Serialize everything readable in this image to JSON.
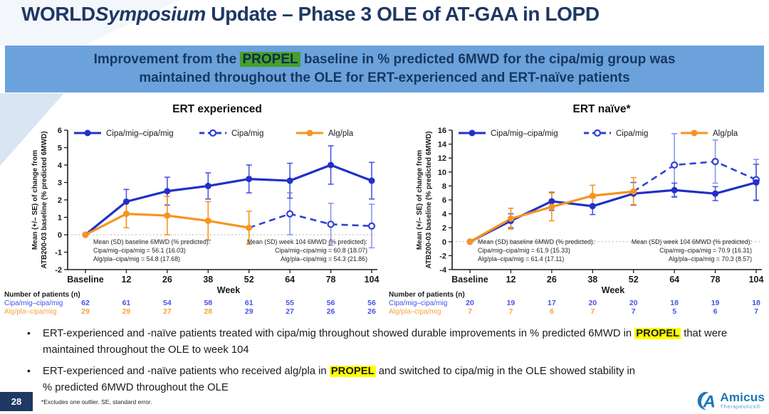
{
  "title": {
    "part_world": "WORLD",
    "part_symposium": "Symposium",
    "part_rest": " Update – Phase 3 OLE of AT-GAA in LOPD"
  },
  "banner": {
    "line1_pre": "Improvement from the ",
    "propel": "PROPEL",
    "line1_post": " baseline in % predicted 6MWD for the cipa/mig group was",
    "line2": "maintained throughout the OLE for ERT-experienced and ERT-naïve patients"
  },
  "colors": {
    "title_navy": "#1F3864",
    "banner_bg": "#6CA2DC",
    "banner_text": "#17375E",
    "propel_green": "#45A029",
    "highlight_yellow": "#FFFF00",
    "series_blue": "#2130C8",
    "series_blue_dashed": "#3141D6",
    "series_orange": "#F7941E",
    "patient_blue": "#4553E8",
    "patient_orange": "#F9A13C",
    "footer_navy": "#1F3864",
    "logo_blue": "#1B75BC"
  },
  "chart_data": [
    {
      "type": "line",
      "title": "ERT experienced",
      "xlabel": "Week",
      "ylabel_line1": "Mean (+/– SE) of change from",
      "ylabel_line2": "ATB200-03 baseline (% predicted 6MWD)",
      "x_categories": [
        "Baseline",
        "12",
        "26",
        "38",
        "52",
        "64",
        "78",
        "104"
      ],
      "ylim": [
        -2,
        6
      ],
      "ytick_step": 1,
      "legend": [
        {
          "label": "Cipa/mig–cipa/mig",
          "color": "#2130C8",
          "style": "solid",
          "marker": "filled"
        },
        {
          "label": "Cipa/mig",
          "color": "#3141D6",
          "style": "dashed",
          "marker": "open"
        },
        {
          "label": "Alg/pla",
          "color": "#F7941E",
          "style": "solid",
          "marker": "filled"
        }
      ],
      "series": [
        {
          "name": "Cipa/mig",
          "style": "dashed",
          "marker": "open",
          "color": "#3141D6",
          "error_color": "#8A95EF",
          "x_idx": [
            4,
            5,
            6,
            7
          ],
          "values": [
            0.4,
            1.2,
            0.6,
            0.5
          ],
          "se": [
            0,
            1.2,
            1.2,
            1.25
          ],
          "draw_marker": [
            false,
            true,
            true,
            true
          ]
        },
        {
          "name": "Cipa/mig–cipa/mig",
          "style": "solid",
          "marker": "filled",
          "color": "#2130C8",
          "error_color": "#4A57E0",
          "x_idx": [
            0,
            1,
            2,
            3,
            4,
            5,
            6,
            7
          ],
          "values": [
            0,
            1.9,
            2.5,
            2.8,
            3.2,
            3.1,
            4.0,
            3.1
          ],
          "se": [
            0,
            0.7,
            0.8,
            0.75,
            0.8,
            1.0,
            1.1,
            1.05
          ]
        },
        {
          "name": "Alg/pla",
          "style": "solid",
          "marker": "filled",
          "color": "#F7941E",
          "error_color": "#F7941E",
          "x_idx": [
            0,
            1,
            2,
            3,
            4
          ],
          "values": [
            0,
            1.2,
            1.1,
            0.8,
            0.4
          ],
          "se": [
            0,
            0.8,
            1.1,
            1.1,
            0.95
          ]
        }
      ],
      "annotations": {
        "left": [
          "Mean (SD) baseline 6MWD (% predicted):",
          "Cipa/mig–cipa/mig = 56.1 (16.03)",
          "Alg/pla–cipa/mig = 54.8 (17.68)"
        ],
        "right": [
          "Mean (SD) week 104 6MWD (% predicted):",
          "Cipa/mig–cipa/mig = 60.8 (18.07)",
          "Alg/pla–cipa/mig = 54.3 (21.86)"
        ]
      },
      "patients": {
        "header": "Number of patients (n)",
        "rows": [
          {
            "label": "Cipa/mig–cipa/mig",
            "label_color": "#4553E8",
            "values": [
              "62",
              "61",
              "54",
              "58",
              "61",
              "55",
              "56",
              "56"
            ],
            "value_colors": [
              "#4553E8",
              "#4553E8",
              "#4553E8",
              "#4553E8",
              "#4553E8",
              "#4553E8",
              "#4553E8",
              "#4553E8"
            ]
          },
          {
            "label": "Alg/pla–cipa/mig",
            "label_color": "#F9A13C",
            "values": [
              "29",
              "29",
              "27",
              "28",
              "29",
              "27",
              "26",
              "26"
            ],
            "value_colors": [
              "#F9A13C",
              "#F9A13C",
              "#F9A13C",
              "#F9A13C",
              "#4553E8",
              "#4553E8",
              "#4553E8",
              "#4553E8"
            ]
          }
        ]
      }
    },
    {
      "type": "line",
      "title": "ERT naïve*",
      "xlabel": "Week",
      "ylabel_line1": "Mean (+/– SE) of change from",
      "ylabel_line2": "ATB200-03 baseline (% predicted 6MWD)",
      "x_categories": [
        "Baseline",
        "12",
        "26",
        "38",
        "52",
        "64",
        "78",
        "104"
      ],
      "ylim": [
        -4,
        16
      ],
      "ytick_step": 2,
      "legend": [
        {
          "label": "Cipa/mig–cipa/mig",
          "color": "#2130C8",
          "style": "solid",
          "marker": "filled"
        },
        {
          "label": "Cipa/mig",
          "color": "#3141D6",
          "style": "dashed",
          "marker": "open"
        },
        {
          "label": "Alg/pla",
          "color": "#F7941E",
          "style": "solid",
          "marker": "filled"
        }
      ],
      "series": [
        {
          "name": "Cipa/mig",
          "style": "dashed",
          "marker": "open",
          "color": "#3141D6",
          "error_color": "#8A95EF",
          "x_idx": [
            4,
            5,
            6,
            7
          ],
          "values": [
            7.2,
            11.0,
            11.5,
            8.9
          ],
          "se": [
            0,
            4.5,
            3.1,
            2.9
          ],
          "draw_marker": [
            false,
            true,
            true,
            true
          ]
        },
        {
          "name": "Cipa/mig–cipa/mig",
          "style": "solid",
          "marker": "filled",
          "color": "#2130C8",
          "error_color": "#4A57E0",
          "x_idx": [
            0,
            1,
            2,
            3,
            4,
            5,
            6,
            7
          ],
          "values": [
            0,
            3.0,
            5.8,
            5.1,
            6.9,
            7.4,
            6.9,
            8.5
          ],
          "se": [
            0,
            1.0,
            1.3,
            1.2,
            1.6,
            1.0,
            1.0,
            2.6
          ]
        },
        {
          "name": "Alg/pla",
          "style": "solid",
          "marker": "filled",
          "color": "#F7941E",
          "error_color": "#F7941E",
          "x_idx": [
            0,
            1,
            2,
            3,
            4
          ],
          "values": [
            0,
            3.3,
            5.0,
            6.6,
            7.2
          ],
          "se": [
            0,
            1.5,
            2.0,
            1.5,
            2.0
          ]
        }
      ],
      "annotations": {
        "left": [
          "Mean (SD) baseline 6MWD (% predicted):",
          "Cipa/mig–cipa/mig = 61.9 (15.33)",
          "Alg/pla–cipa/mig = 61.4 (17.11)"
        ],
        "right": [
          "Mean (SD) week 104 6MWD (% predicted):",
          "Cipa/mig–cipa/mig = 70.9 (16.31)",
          "Alg/pla–cipa/mig = 70.3 (8.57)"
        ]
      },
      "patients": {
        "header": "Number of patients (n)",
        "rows": [
          {
            "label": "Cipa/mig–cipa/mig",
            "label_color": "#4553E8",
            "values": [
              "20",
              "19",
              "17",
              "20",
              "20",
              "18",
              "19",
              "18"
            ],
            "value_colors": [
              "#4553E8",
              "#4553E8",
              "#4553E8",
              "#4553E8",
              "#4553E8",
              "#4553E8",
              "#4553E8",
              "#4553E8"
            ]
          },
          {
            "label": "Alg/pla–cipa/mig",
            "label_color": "#F9A13C",
            "values": [
              "7",
              "7",
              "6",
              "7",
              "7",
              "5",
              "6",
              "7"
            ],
            "value_colors": [
              "#F9A13C",
              "#F9A13C",
              "#F9A13C",
              "#F9A13C",
              "#4553E8",
              "#4553E8",
              "#4553E8",
              "#4553E8"
            ]
          }
        ]
      }
    }
  ],
  "bullets": [
    {
      "parts": [
        {
          "text": "ERT-experienced and -naïve patients treated with cipa/mig throughout showed durable improvements in % predicted 6MWD in ",
          "highlight": false
        },
        {
          "text": "PROPEL",
          "highlight": true
        },
        {
          "text": " that were\nmaintained throughout the OLE to week 104",
          "highlight": false
        }
      ]
    },
    {
      "parts": [
        {
          "text": "ERT-experienced and -naïve patients who received alg/pla in ",
          "highlight": false
        },
        {
          "text": "PROPEL",
          "highlight": true
        },
        {
          "text": " and switched to cipa/mig in the OLE showed stability in\n% predicted 6MWD throughout the OLE",
          "highlight": false
        }
      ]
    }
  ],
  "footer": {
    "page_number": "28",
    "footnote": "*Excludes one outlier. SE, standard error.",
    "logo_name": "Amicus",
    "logo_sub": "Therapeutics®"
  }
}
